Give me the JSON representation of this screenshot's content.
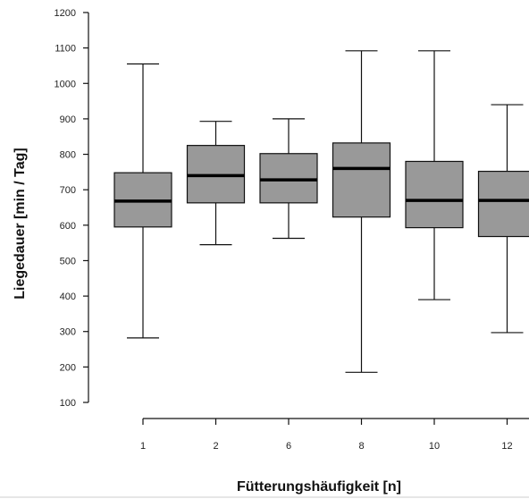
{
  "chart_data": {
    "type": "boxplot",
    "xlabel": "Fütterungshäufigkeit [n]",
    "ylabel": "Liegedauer [min / Tag]",
    "ylim": [
      100,
      1200
    ],
    "yticks": [
      100,
      200,
      300,
      400,
      500,
      600,
      700,
      800,
      900,
      1000,
      1100,
      1200
    ],
    "categories": [
      "1",
      "2",
      "6",
      "8",
      "10",
      "12"
    ],
    "box_color": "#999999",
    "grid": false,
    "series": [
      {
        "category": "1",
        "whisker_low": 282,
        "q1": 595,
        "median": 668,
        "q3": 748,
        "whisker_high": 1055
      },
      {
        "category": "2",
        "whisker_low": 545,
        "q1": 663,
        "median": 740,
        "q3": 825,
        "whisker_high": 893
      },
      {
        "category": "6",
        "whisker_low": 563,
        "q1": 663,
        "median": 728,
        "q3": 802,
        "whisker_high": 900
      },
      {
        "category": "8",
        "whisker_low": 185,
        "q1": 623,
        "median": 760,
        "q3": 832,
        "whisker_high": 1092
      },
      {
        "category": "10",
        "whisker_low": 390,
        "q1": 593,
        "median": 670,
        "q3": 780,
        "whisker_high": 1092
      },
      {
        "category": "12",
        "whisker_low": 297,
        "q1": 568,
        "median": 670,
        "q3": 752,
        "whisker_high": 940
      }
    ]
  }
}
